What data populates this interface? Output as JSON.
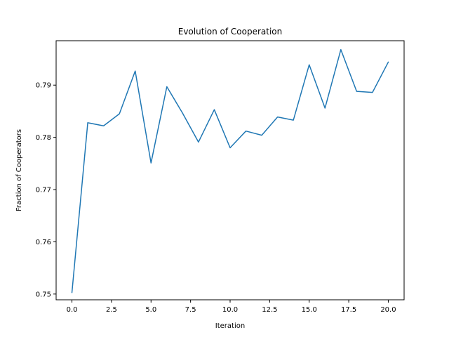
{
  "chart_data": {
    "type": "line",
    "title": "Evolution of Cooperation",
    "xlabel": "Iteration",
    "ylabel": "Fraction of Cooperators",
    "xlim": [
      -1.0,
      21.0
    ],
    "ylim": [
      0.7489,
      0.7985
    ],
    "xticks": [
      0.0,
      2.5,
      5.0,
      7.5,
      10.0,
      12.5,
      15.0,
      17.5,
      20.0
    ],
    "xtick_labels": [
      "0.0",
      "2.5",
      "5.0",
      "7.5",
      "10.0",
      "12.5",
      "15.0",
      "17.5",
      "20.0"
    ],
    "yticks": [
      0.75,
      0.76,
      0.77,
      0.78,
      0.79
    ],
    "ytick_labels": [
      "0.75",
      "0.76",
      "0.77",
      "0.78",
      "0.79"
    ],
    "grid": false,
    "legend": "none",
    "series": [
      {
        "color": "#1f77b4",
        "x": [
          0,
          1,
          2,
          3,
          4,
          5,
          6,
          7,
          8,
          9,
          10,
          11,
          12,
          13,
          14,
          15,
          16,
          17,
          18,
          19,
          20
        ],
        "values": [
          0.7503,
          0.7828,
          0.7822,
          0.7845,
          0.7927,
          0.7751,
          0.7897,
          0.7846,
          0.7791,
          0.7853,
          0.778,
          0.7812,
          0.7804,
          0.7839,
          0.7833,
          0.7939,
          0.7856,
          0.7968,
          0.7888,
          0.7886,
          0.7944
        ]
      }
    ]
  }
}
